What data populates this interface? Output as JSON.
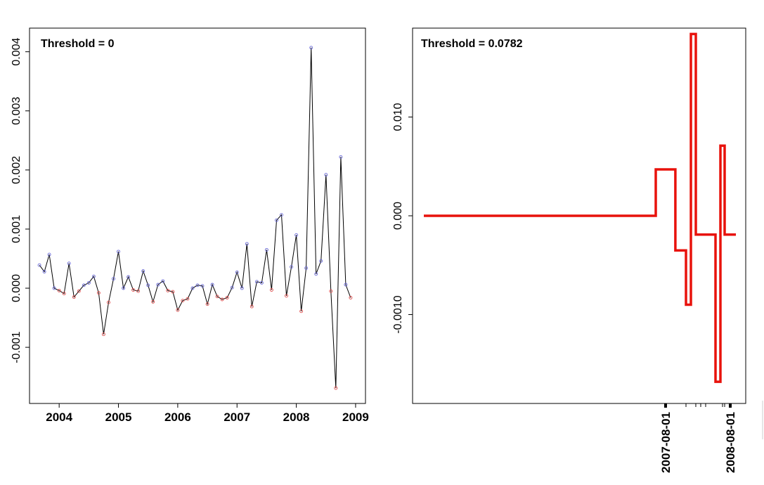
{
  "colors": {
    "line": "#000000",
    "positive_point": "#6b6bd8",
    "negative_point": "#e05050",
    "step": "#e8120c"
  },
  "chart_data": [
    {
      "type": "line",
      "title": "Threshold = 0",
      "xlabel": "",
      "ylabel": "",
      "x_ticks": [
        "2004",
        "2005",
        "2006",
        "2007",
        "2008",
        "2009"
      ],
      "y_ticks": [
        "-0.001",
        "0.000",
        "0.001",
        "0.002",
        "0.003",
        "0.004"
      ],
      "xlim": [
        "2003-07-01",
        "2009-03-01"
      ],
      "ylim": [
        -0.00195,
        0.0044
      ],
      "grid": false,
      "series": [
        {
          "x": [
            "2003-09",
            "2003-10",
            "2003-11",
            "2003-12",
            "2004-01",
            "2004-02",
            "2004-03",
            "2004-04",
            "2004-05",
            "2004-06",
            "2004-07",
            "2004-08",
            "2004-09",
            "2004-10",
            "2004-11",
            "2004-12",
            "2005-01",
            "2005-02",
            "2005-03",
            "2005-04",
            "2005-05",
            "2005-06",
            "2005-07",
            "2005-08",
            "2005-09",
            "2005-10",
            "2005-11",
            "2005-12",
            "2006-01",
            "2006-02",
            "2006-03",
            "2006-04",
            "2006-05",
            "2006-06",
            "2006-07",
            "2006-08",
            "2006-09",
            "2006-10",
            "2006-11",
            "2006-12",
            "2007-01",
            "2007-02",
            "2007-03",
            "2007-04",
            "2007-05",
            "2007-06",
            "2007-07",
            "2007-08",
            "2007-09",
            "2007-10",
            "2007-11",
            "2007-12",
            "2008-01",
            "2008-02",
            "2008-03",
            "2008-04",
            "2008-05",
            "2008-06",
            "2008-07",
            "2008-08",
            "2008-09",
            "2008-10",
            "2008-11",
            "2008-12"
          ],
          "y": [
            0.00039,
            0.00028,
            0.00057,
            0.0,
            -4e-05,
            -9e-05,
            0.00042,
            -0.00015,
            -5e-05,
            5e-05,
            9e-05,
            0.0002,
            -8e-05,
            -0.00078,
            -0.00024,
            0.00016,
            0.00062,
            0.0,
            0.00019,
            -3e-05,
            -5e-05,
            0.00029,
            5e-05,
            -0.00023,
            6e-05,
            0.00012,
            -4e-05,
            -6e-05,
            -0.00037,
            -0.00021,
            -0.00018,
            0.0,
            5e-05,
            4e-05,
            -0.00027,
            6e-05,
            -0.00014,
            -0.00019,
            -0.00016,
            1e-05,
            0.00027,
            0.0,
            0.00075,
            -0.00031,
            0.00011,
            9e-05,
            0.00065,
            -3e-05,
            0.00115,
            0.00124,
            -0.00013,
            0.00036,
            0.0009,
            -0.00039,
            0.00034,
            0.00407,
            0.00024,
            0.00046,
            0.00192,
            -5e-05,
            -0.00169,
            0.00222,
            6e-05,
            -0.00016
          ]
        }
      ]
    },
    {
      "type": "line",
      "title": "Threshold = 0.0782",
      "xlabel": "",
      "ylabel": "",
      "x_ticks": [
        "2007-08-01",
        "2008-08-01"
      ],
      "y_ticks": [
        "-0.0010",
        "0.000",
        "0.010"
      ],
      "ylim": [
        -0.019,
        0.019
      ],
      "grid": false,
      "series": [
        {
          "step": true,
          "x": [
            "2003-09",
            "2007-07",
            "2007-09",
            "2007-10",
            "2007-11",
            "2007-12",
            "2008-04",
            "2008-05",
            "2008-07"
          ],
          "y": [
            0.0,
            0.0047,
            -0.0035,
            -0.009,
            0.0184,
            -0.0019,
            -0.0168,
            0.0071,
            -0.0019
          ]
        }
      ]
    }
  ]
}
